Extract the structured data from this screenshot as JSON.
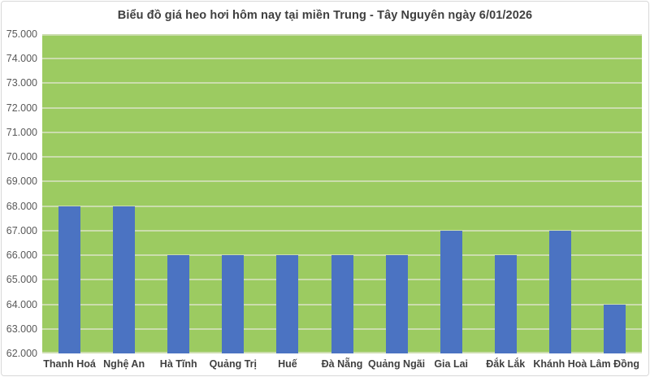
{
  "chart_data": {
    "type": "bar",
    "title": "Biểu đồ giá heo hơi hôm nay tại miền Trung - Tây Nguyên ngày 6/01/2026",
    "categories": [
      "Thanh Hoá",
      "Nghệ An",
      "Hà Tĩnh",
      "Quảng Trị",
      "Huế",
      "Đà Nẵng",
      "Quảng Ngãi",
      "Gia Lai",
      "Đắk Lắk",
      "Khánh Hoà",
      "Lâm Đồng"
    ],
    "values": [
      68000,
      68000,
      66000,
      66000,
      66000,
      66000,
      66000,
      67000,
      66000,
      67000,
      64000
    ],
    "xlabel": "",
    "ylabel": "",
    "ylim": [
      62000,
      75000
    ],
    "ytick_step": 1000,
    "ytick_labels": [
      "62.000",
      "63.000",
      "64.000",
      "65.000",
      "66.000",
      "67.000",
      "68.000",
      "69.000",
      "70.000",
      "71.000",
      "72.000",
      "73.000",
      "74.000",
      "75.000"
    ],
    "grid": true,
    "legend": false
  },
  "colors": {
    "bar": "#4B73C2",
    "plot_background": "#9CCB61",
    "gridline": "#CBDDAD",
    "title_text": "#3F3F3F",
    "y_axis_text": "#595959",
    "x_axis_text": "#404040",
    "chart_border": "#D9D9D9",
    "page_background": "#FFFFFF"
  }
}
